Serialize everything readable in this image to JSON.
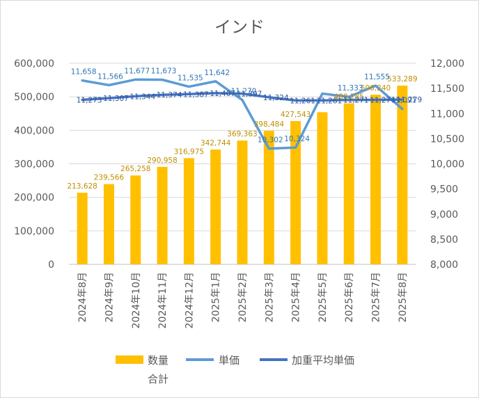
{
  "chart_data": {
    "type": "bar+line",
    "title": "インド",
    "categories": [
      "2024年8月",
      "2024年9月",
      "2024年10月",
      "2024年11月",
      "2024年12月",
      "2025年1月",
      "2025年2月",
      "2025年3月",
      "2025年4月",
      "2025年5月",
      "2025年6月",
      "2025年7月",
      "2025年8月"
    ],
    "series": [
      {
        "name": "数量合計",
        "type": "bar",
        "axis": "left",
        "color": "#ffc000",
        "values": [
          213628,
          239566,
          265258,
          290958,
          316975,
          342744,
          369363,
          398484,
          427543,
          454000,
          480285,
          506240,
          533289
        ],
        "labels": [
          "213,628",
          "239,566",
          "265,258",
          "290,958",
          "316,975",
          "342,744",
          "369,363",
          "398,484",
          "427,543",
          "",
          "480,285",
          "506,240",
          "533,289"
        ]
      },
      {
        "name": "単価",
        "type": "line",
        "axis": "right",
        "color": "#5b9bd5",
        "values": [
          11658,
          11566,
          11677,
          11673,
          11535,
          11642,
          11270,
          10302,
          10324,
          11397,
          11333,
          11555,
          11091
        ],
        "labels": [
          "11,658",
          "11,566",
          "11,677",
          "11,673",
          "11,535",
          "11,642",
          "11,270",
          "10,302",
          "10,324",
          "",
          "11,333",
          "11,555",
          "11,091"
        ]
      },
      {
        "name": "加重平均単価",
        "type": "line",
        "axis": "right",
        "color": "#4472c4",
        "values": [
          11273,
          11307,
          11344,
          11374,
          11387,
          11407,
          11397,
          11324,
          11261,
          11261,
          11271,
          11274,
          11279
        ],
        "labels": [
          "11,273",
          "11,307",
          "11,344",
          "11,374",
          "11,387",
          "11,407",
          "11,397",
          "11,324",
          "11,261",
          "11,261",
          "11,271",
          "11,274",
          "11,279"
        ]
      }
    ],
    "left_axis": {
      "min": 0,
      "max": 600000,
      "ticks": [
        "0",
        "100,000",
        "200,000",
        "300,000",
        "400,000",
        "500,000",
        "600,000"
      ]
    },
    "right_axis": {
      "min": 8000,
      "max": 12000,
      "ticks": [
        "8,000",
        "8,500",
        "9,000",
        "9,500",
        "10,000",
        "10,500",
        "11,000",
        "11,500",
        "12,000"
      ]
    },
    "grid": true,
    "legend_position": "bottom",
    "legend": [
      "数量合計",
      "単価",
      "加重平均単価"
    ]
  }
}
